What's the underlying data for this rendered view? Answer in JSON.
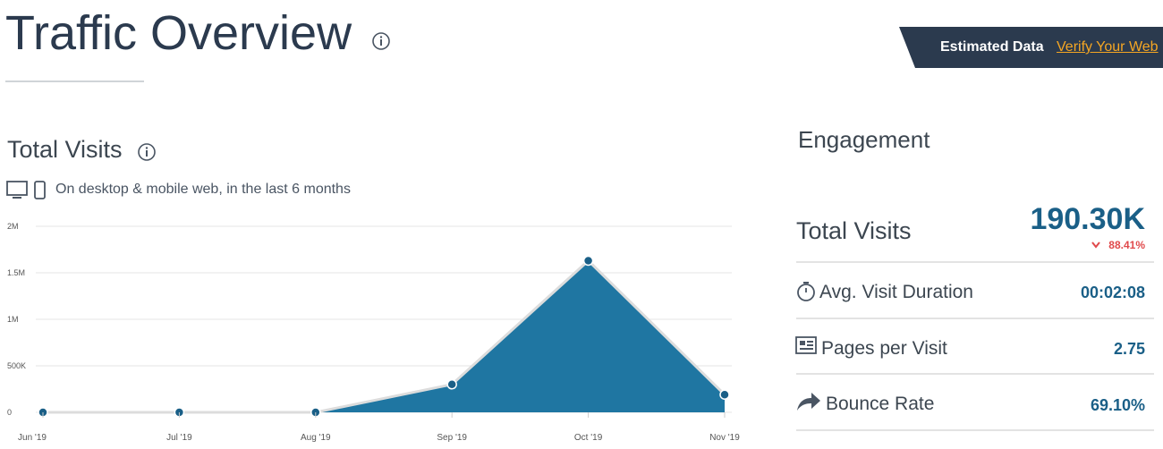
{
  "header": {
    "title": "Traffic Overview",
    "banner": "Estimated Data",
    "link": "Verify Your Web"
  },
  "section": {
    "title": "Total Visits",
    "subtitle": "On desktop & mobile web, in the last 6 months"
  },
  "chart_data": {
    "type": "area",
    "categories": [
      "Jun '19",
      "Jul '19",
      "Aug '19",
      "Sep '19",
      "Oct '19",
      "Nov '19"
    ],
    "values": [
      0,
      0,
      0,
      300000,
      1630000,
      190300
    ],
    "color": "#1f76a2",
    "ylim": [
      0,
      2000000
    ],
    "yticks": [
      0,
      {
        "value": 500000,
        "label": "500K"
      },
      {
        "value": 1000000,
        "label": "1M"
      },
      {
        "value": 1500000,
        "label": "1.5M"
      },
      {
        "value": 2000000,
        "label": "2M"
      }
    ],
    "grid": true
  },
  "engagement": {
    "title": "Engagement",
    "total": {
      "label": "Total Visits",
      "value": "190.30K",
      "change": "88.41%"
    },
    "metrics": [
      {
        "label": "Avg. Visit Duration",
        "value": "00:02:08"
      },
      {
        "label": "Pages per Visit",
        "value": "2.75"
      },
      {
        "label": "Bounce Rate",
        "value": "69.10%"
      }
    ]
  }
}
